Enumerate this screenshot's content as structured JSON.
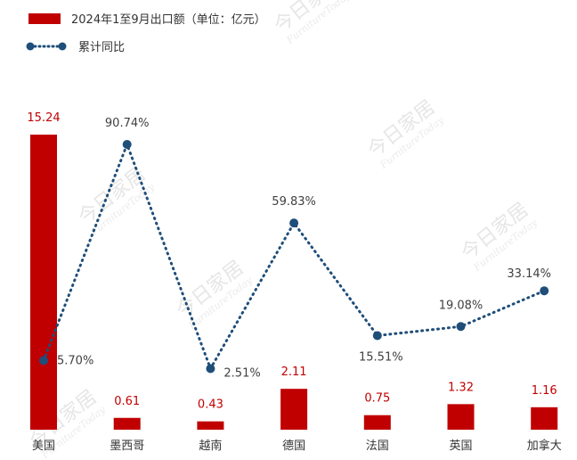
{
  "chart_data": {
    "type": "bar",
    "categories": [
      "美国",
      "墨西哥",
      "越南",
      "德国",
      "法国",
      "英国",
      "加拿大"
    ],
    "series": [
      {
        "name": "2024年1至9月出口额（单位：亿元）",
        "type": "bar",
        "values": [
          15.24,
          0.61,
          0.43,
          2.11,
          0.75,
          1.32,
          1.16
        ],
        "labels": [
          "15.24",
          "0.61",
          "0.43",
          "2.11",
          "0.75",
          "1.32",
          "1.16"
        ],
        "color": "#c00000"
      },
      {
        "name": "累计同比",
        "type": "line",
        "style": "dotted",
        "values": [
          5.7,
          90.74,
          2.51,
          59.83,
          15.51,
          19.08,
          33.14
        ],
        "labels": [
          "5.70%",
          "90.74%",
          "2.51%",
          "59.83%",
          "15.51%",
          "19.08%",
          "33.14%"
        ],
        "color": "#1f4e79"
      }
    ],
    "ylim": [
      0,
      16
    ],
    "ylim_secondary": [
      -10,
      120
    ],
    "grid": false,
    "legend_position": "top-left",
    "watermark": {
      "text": "今日家居",
      "subtext": "FurnitureToday",
      "color": "#e6e6e6"
    }
  }
}
